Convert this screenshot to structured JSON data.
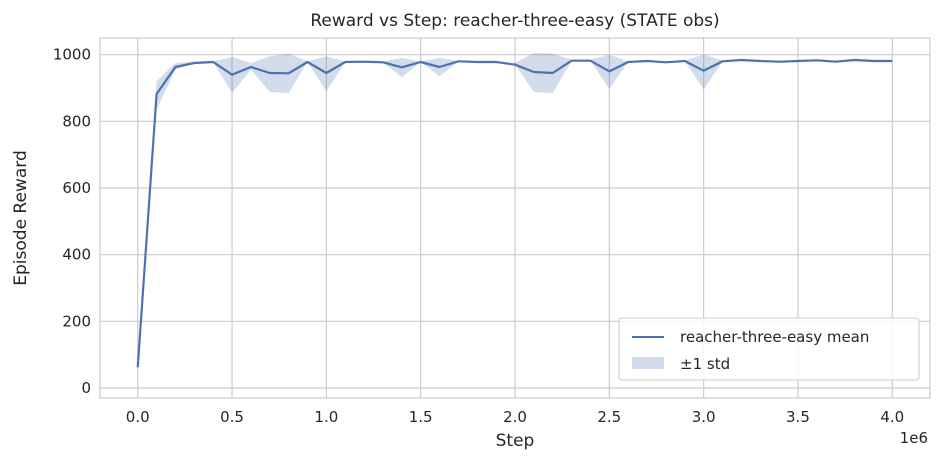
{
  "chart_data": {
    "type": "line",
    "title": "Reward vs Step: reacher-three-easy (STATE obs)",
    "xlabel": "Step",
    "ylabel": "Episode Reward",
    "x_scale_label": "1e6",
    "xlim": [
      -0.2,
      4.2
    ],
    "ylim": [
      -30,
      1050
    ],
    "xticks": [
      0.0,
      0.5,
      1.0,
      1.5,
      2.0,
      2.5,
      3.0,
      3.5,
      4.0
    ],
    "xtick_labels": [
      "0.0",
      "0.5",
      "1.0",
      "1.5",
      "2.0",
      "2.5",
      "3.0",
      "3.5",
      "4.0"
    ],
    "yticks": [
      0,
      200,
      400,
      600,
      800,
      1000
    ],
    "ytick_labels": [
      "0",
      "200",
      "400",
      "600",
      "800",
      "1000"
    ],
    "grid": true,
    "legend_position": "bottom-right",
    "series": [
      {
        "name": "reacher-three-easy mean",
        "color": "#4c72b0",
        "x": [
          0.0,
          0.1,
          0.2,
          0.3,
          0.4,
          0.5,
          0.6,
          0.7,
          0.8,
          0.9,
          1.0,
          1.1,
          1.2,
          1.3,
          1.4,
          1.5,
          1.6,
          1.7,
          1.8,
          1.9,
          2.0,
          2.1,
          2.2,
          2.3,
          2.4,
          2.5,
          2.6,
          2.7,
          2.8,
          2.9,
          3.0,
          3.1,
          3.2,
          3.3,
          3.4,
          3.5,
          3.6,
          3.7,
          3.8,
          3.9,
          4.0
        ],
        "y": [
          62,
          882,
          963,
          975,
          978,
          940,
          963,
          945,
          944,
          978,
          945,
          978,
          979,
          977,
          962,
          978,
          963,
          980,
          978,
          978,
          970,
          948,
          945,
          982,
          982,
          950,
          978,
          981,
          977,
          981,
          952,
          980,
          984,
          981,
          979,
          981,
          983,
          979,
          984,
          981,
          981
        ]
      }
    ],
    "band": {
      "name": "±1 std",
      "color": "#4c72b0",
      "opacity": 0.25,
      "lower": [
        62,
        835,
        955,
        975,
        978,
        885,
        955,
        888,
        885,
        978,
        890,
        978,
        979,
        977,
        932,
        978,
        935,
        980,
        978,
        978,
        970,
        888,
        885,
        982,
        982,
        897,
        978,
        981,
        977,
        981,
        895,
        980,
        984,
        981,
        979,
        981,
        983,
        979,
        984,
        981,
        981
      ],
      "upper": [
        62,
        920,
        975,
        980,
        980,
        993,
        975,
        995,
        1003,
        980,
        995,
        980,
        980,
        980,
        990,
        980,
        990,
        982,
        980,
        980,
        975,
        1005,
        1003,
        985,
        985,
        1000,
        980,
        982,
        980,
        983,
        1000,
        983,
        986,
        983,
        982,
        983,
        986,
        982,
        987,
        983,
        983
      ]
    }
  }
}
